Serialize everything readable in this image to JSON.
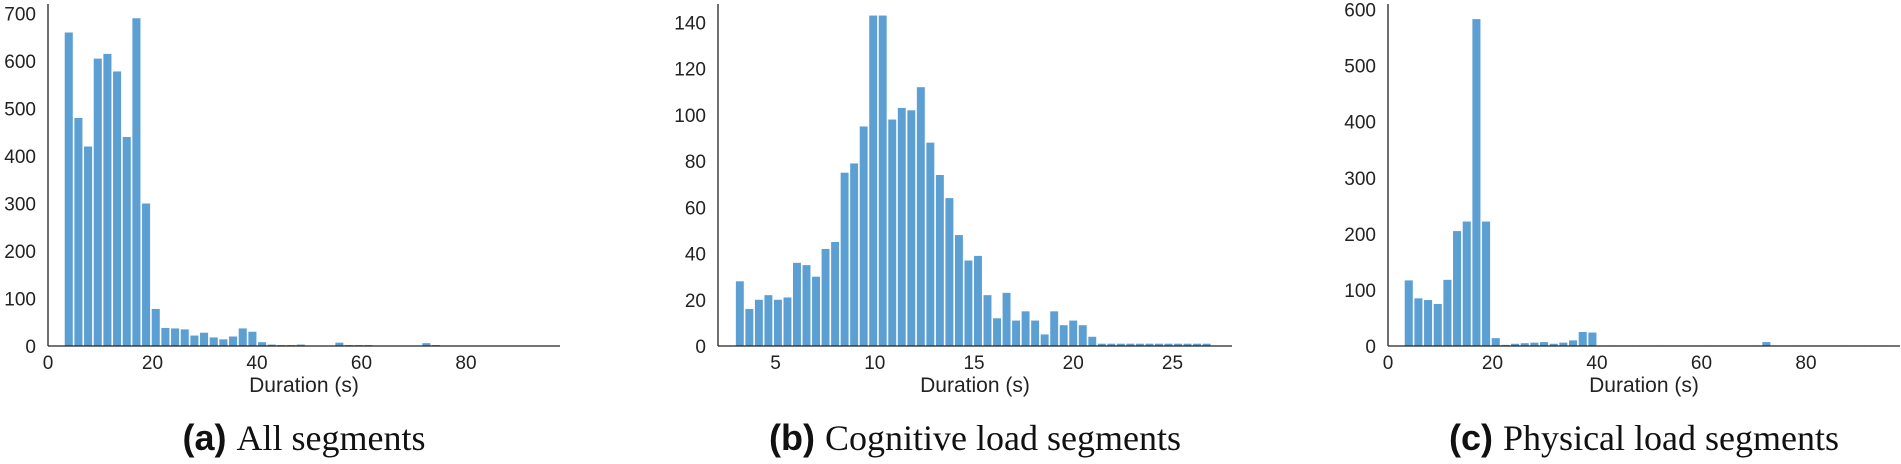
{
  "colors": {
    "bar": "#5b9fd3",
    "axis": "#222222"
  },
  "chart_data": [
    {
      "type": "bar",
      "panel": "(a)",
      "caption": "All segments",
      "xlabel": "Duration (s)",
      "ylabel": "",
      "xlim": [
        0,
        98
      ],
      "ylim": [
        0,
        720
      ],
      "xticks": [
        0,
        20,
        40,
        60,
        80
      ],
      "yticks": [
        0,
        100,
        200,
        300,
        400,
        500,
        600,
        700
      ],
      "bin_start": 3.2,
      "bin_width": 1.85,
      "values": [
        660,
        480,
        420,
        605,
        615,
        578,
        440,
        690,
        300,
        78,
        38,
        37,
        35,
        22,
        28,
        18,
        14,
        20,
        37,
        30,
        8,
        3,
        2,
        2,
        3,
        1,
        1,
        1,
        7,
        2,
        2,
        2,
        1,
        1,
        1,
        1,
        1,
        6,
        2,
        1,
        1,
        1,
        1,
        1,
        1,
        1,
        1,
        1,
        1,
        1
      ]
    },
    {
      "type": "bar",
      "panel": "(b)",
      "caption": "Cognitive load segments",
      "xlabel": "Duration (s)",
      "ylabel": "",
      "xlim": [
        2.1,
        28
      ],
      "ylim": [
        0,
        148
      ],
      "xticks": [
        5,
        10,
        15,
        20,
        25
      ],
      "yticks": [
        0,
        20,
        40,
        60,
        80,
        100,
        120,
        140
      ],
      "bin_start": 3.0,
      "bin_width": 0.48,
      "values": [
        28,
        16,
        20,
        22,
        20,
        21,
        36,
        35,
        30,
        42,
        45,
        75,
        79,
        95,
        143,
        143,
        98,
        103,
        102,
        112,
        88,
        74,
        64,
        48,
        37,
        39,
        22,
        12,
        23,
        11,
        15,
        11,
        5,
        15,
        9,
        11,
        9,
        4,
        1,
        1,
        1,
        1,
        1,
        1,
        1,
        1,
        1,
        1,
        1,
        1
      ]
    },
    {
      "type": "bar",
      "panel": "(c)",
      "caption": "Physical load segments",
      "xlabel": "Duration (s)",
      "ylabel": "",
      "xlim": [
        0,
        98
      ],
      "ylim": [
        0,
        610
      ],
      "xticks": [
        0,
        20,
        40,
        60,
        80
      ],
      "yticks": [
        0,
        100,
        200,
        300,
        400,
        500,
        600
      ],
      "bin_start": 3.2,
      "bin_width": 1.85,
      "values": [
        117,
        85,
        82,
        75,
        118,
        205,
        222,
        583,
        222,
        14,
        2,
        4,
        5,
        6,
        7,
        4,
        6,
        10,
        25,
        24,
        1,
        1,
        1,
        1,
        1,
        1,
        1,
        1,
        1,
        1,
        1,
        1,
        1,
        1,
        1,
        1,
        1,
        7,
        1,
        1,
        1,
        1,
        1,
        1,
        1,
        1,
        1,
        1,
        1,
        1
      ]
    }
  ]
}
